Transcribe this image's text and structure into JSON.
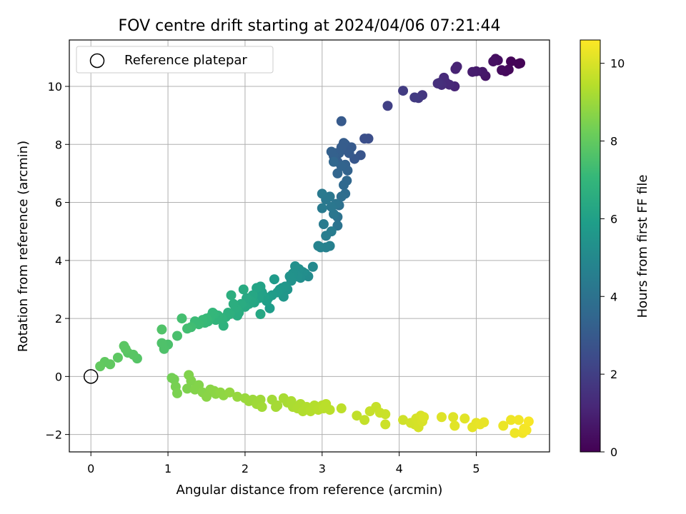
{
  "chart_data": {
    "type": "scatter",
    "title": "FOV centre drift starting at 2024/04/06 07:21:44",
    "xlabel": "Angular distance from reference (arcmin)",
    "ylabel": "Rotation from reference (arcmin)",
    "xlim": [
      -0.28,
      5.95
    ],
    "ylim": [
      -2.6,
      11.6
    ],
    "xticks": [
      0,
      1,
      2,
      3,
      4,
      5
    ],
    "yticks": [
      -2,
      0,
      2,
      4,
      6,
      8,
      10
    ],
    "xtick_labels": [
      "0",
      "1",
      "2",
      "3",
      "4",
      "5"
    ],
    "ytick_labels": [
      "−2",
      "0",
      "2",
      "4",
      "6",
      "8",
      "10"
    ],
    "grid": true,
    "legend": {
      "location": "upper-left",
      "entries": [
        "Reference platepar"
      ]
    },
    "reference_point": {
      "x": 0,
      "y": 0,
      "marker": "open-circle"
    },
    "colorbar": {
      "label": "Hours from first FF file",
      "range": [
        0,
        10.6
      ],
      "ticks": [
        0,
        2,
        4,
        6,
        8,
        10
      ],
      "tick_labels": [
        "0",
        "2",
        "4",
        "6",
        "8",
        "10"
      ],
      "colormap": "viridis",
      "stops": [
        "#440154",
        "#482878",
        "#3e4989",
        "#31688e",
        "#26828e",
        "#1f9e89",
        "#35b779",
        "#6ece58",
        "#b5de2b",
        "#fde725"
      ]
    },
    "series": [
      {
        "points": [
          [
            5.55,
            10.78
          ],
          [
            5.57,
            10.8
          ],
          [
            5.45,
            10.86
          ],
          [
            5.42,
            10.58
          ],
          [
            5.38,
            10.52
          ],
          [
            5.33,
            10.56
          ],
          [
            5.28,
            10.9
          ],
          [
            5.25,
            10.95
          ],
          [
            5.22,
            10.86
          ],
          [
            5.12,
            10.36
          ],
          [
            5.08,
            10.5
          ],
          [
            5.0,
            10.52
          ],
          [
            4.95,
            10.5
          ],
          [
            4.73,
            10.6
          ],
          [
            4.75,
            10.68
          ],
          [
            4.72,
            10.0
          ],
          [
            4.65,
            10.06
          ],
          [
            4.6,
            10.15
          ],
          [
            4.58,
            10.3
          ],
          [
            4.55,
            10.05
          ],
          [
            4.52,
            10.12
          ],
          [
            4.5,
            10.1
          ],
          [
            4.3,
            9.7
          ],
          [
            4.25,
            9.6
          ],
          [
            4.2,
            9.62
          ],
          [
            4.05,
            9.85
          ],
          [
            3.85,
            9.33
          ],
          [
            3.6,
            8.2
          ],
          [
            3.55,
            8.2
          ],
          [
            3.5,
            7.63
          ],
          [
            3.42,
            7.5
          ],
          [
            3.38,
            7.9
          ],
          [
            3.35,
            7.7
          ],
          [
            3.32,
            7.8
          ],
          [
            3.3,
            8.0
          ],
          [
            3.28,
            8.05
          ],
          [
            3.25,
            7.9
          ],
          [
            3.25,
            8.8
          ],
          [
            3.22,
            7.7
          ],
          [
            3.2,
            7.4
          ],
          [
            3.18,
            7.7
          ],
          [
            3.15,
            7.6
          ],
          [
            3.12,
            7.75
          ],
          [
            3.3,
            7.3
          ],
          [
            3.33,
            7.1
          ],
          [
            3.25,
            7.25
          ],
          [
            3.2,
            7.0
          ],
          [
            3.15,
            7.4
          ],
          [
            3.32,
            6.75
          ],
          [
            3.28,
            6.6
          ],
          [
            3.3,
            6.3
          ],
          [
            3.25,
            6.2
          ],
          [
            3.22,
            5.9
          ],
          [
            3.2,
            5.5
          ],
          [
            3.2,
            5.2
          ],
          [
            3.18,
            5.95
          ],
          [
            3.15,
            5.6
          ],
          [
            3.12,
            5.85
          ],
          [
            3.1,
            6.2
          ],
          [
            3.05,
            6.1
          ],
          [
            3.0,
            6.3
          ],
          [
            3.0,
            5.8
          ],
          [
            3.02,
            5.25
          ],
          [
            3.05,
            4.85
          ],
          [
            3.1,
            4.5
          ],
          [
            3.05,
            4.45
          ],
          [
            2.98,
            4.45
          ],
          [
            2.95,
            4.5
          ],
          [
            3.12,
            5.0
          ],
          [
            2.88,
            3.78
          ],
          [
            2.82,
            3.45
          ],
          [
            2.78,
            3.55
          ],
          [
            2.75,
            3.6
          ],
          [
            2.72,
            3.4
          ],
          [
            2.7,
            3.7
          ],
          [
            2.68,
            3.45
          ],
          [
            2.65,
            3.8
          ],
          [
            2.62,
            3.55
          ],
          [
            2.6,
            3.3
          ],
          [
            2.58,
            3.45
          ],
          [
            2.55,
            3.0
          ],
          [
            2.52,
            3.1
          ],
          [
            2.5,
            2.75
          ],
          [
            2.48,
            3.05
          ],
          [
            2.45,
            3.0
          ],
          [
            2.42,
            2.9
          ],
          [
            2.38,
            3.35
          ],
          [
            2.35,
            2.8
          ],
          [
            2.32,
            2.35
          ],
          [
            2.3,
            2.7
          ],
          [
            2.28,
            2.6
          ],
          [
            2.25,
            2.75
          ],
          [
            2.22,
            2.9
          ],
          [
            2.2,
            3.1
          ],
          [
            2.18,
            2.7
          ],
          [
            2.15,
            3.05
          ],
          [
            2.12,
            2.55
          ],
          [
            2.1,
            2.8
          ],
          [
            2.08,
            2.6
          ],
          [
            2.05,
            2.5
          ],
          [
            2.02,
            2.7
          ],
          [
            2.0,
            2.4
          ],
          [
            1.98,
            3.0
          ],
          [
            1.95,
            2.5
          ],
          [
            1.92,
            2.2
          ],
          [
            1.9,
            2.1
          ],
          [
            1.88,
            2.35
          ],
          [
            1.85,
            2.5
          ],
          [
            1.82,
            2.8
          ],
          [
            1.8,
            2.15
          ],
          [
            1.78,
            2.2
          ],
          [
            1.75,
            2.05
          ],
          [
            1.72,
            1.75
          ],
          [
            1.7,
            2.0
          ],
          [
            1.65,
            2.1
          ],
          [
            1.62,
            1.95
          ],
          [
            1.6,
            2.15
          ],
          [
            1.58,
            2.2
          ],
          [
            1.55,
            2.05
          ],
          [
            1.52,
            1.9
          ],
          [
            1.5,
            2.0
          ],
          [
            1.48,
            1.85
          ],
          [
            1.45,
            1.95
          ],
          [
            1.4,
            1.8
          ],
          [
            1.35,
            1.9
          ],
          [
            1.3,
            1.7
          ],
          [
            1.25,
            1.65
          ],
          [
            1.18,
            2.0
          ],
          [
            2.2,
            2.15
          ],
          [
            1.12,
            1.4
          ],
          [
            1.0,
            1.1
          ],
          [
            0.95,
            0.95
          ],
          [
            0.92,
            1.15
          ],
          [
            0.92,
            1.62
          ],
          [
            0.6,
            0.62
          ],
          [
            0.55,
            0.75
          ],
          [
            0.48,
            0.82
          ],
          [
            0.45,
            0.95
          ],
          [
            0.43,
            1.05
          ],
          [
            0.35,
            0.65
          ],
          [
            0.25,
            0.42
          ],
          [
            0.18,
            0.5
          ],
          [
            0.12,
            0.35
          ],
          [
            1.05,
            -0.05
          ],
          [
            1.08,
            -0.1
          ],
          [
            1.1,
            -0.35
          ],
          [
            1.12,
            -0.58
          ],
          [
            1.25,
            -0.42
          ],
          [
            1.27,
            0.05
          ],
          [
            1.3,
            -0.15
          ],
          [
            1.35,
            -0.45
          ],
          [
            1.4,
            -0.3
          ],
          [
            1.45,
            -0.55
          ],
          [
            1.5,
            -0.7
          ],
          [
            1.55,
            -0.45
          ],
          [
            1.6,
            -0.5
          ],
          [
            1.62,
            -0.6
          ],
          [
            1.68,
            -0.55
          ],
          [
            1.72,
            -0.65
          ],
          [
            1.8,
            -0.55
          ],
          [
            1.9,
            -0.7
          ],
          [
            2.0,
            -0.75
          ],
          [
            2.05,
            -0.85
          ],
          [
            2.1,
            -0.8
          ],
          [
            2.15,
            -0.95
          ],
          [
            2.2,
            -0.8
          ],
          [
            2.22,
            -1.05
          ],
          [
            2.35,
            -0.8
          ],
          [
            2.4,
            -1.05
          ],
          [
            2.42,
            -1.0
          ],
          [
            2.5,
            -0.75
          ],
          [
            2.55,
            -0.9
          ],
          [
            2.6,
            -0.85
          ],
          [
            2.62,
            -1.05
          ],
          [
            2.68,
            -1.1
          ],
          [
            2.72,
            -0.95
          ],
          [
            2.75,
            -1.2
          ],
          [
            2.8,
            -1.05
          ],
          [
            2.85,
            -1.2
          ],
          [
            2.9,
            -1.0
          ],
          [
            2.95,
            -1.15
          ],
          [
            3.0,
            -1.0
          ],
          [
            3.02,
            -1.1
          ],
          [
            3.05,
            -0.95
          ],
          [
            3.1,
            -1.15
          ],
          [
            3.25,
            -1.1
          ],
          [
            3.45,
            -1.35
          ],
          [
            3.55,
            -1.5
          ],
          [
            3.62,
            -1.2
          ],
          [
            3.7,
            -1.05
          ],
          [
            3.75,
            -1.25
          ],
          [
            3.82,
            -1.3
          ],
          [
            3.82,
            -1.65
          ],
          [
            4.05,
            -1.5
          ],
          [
            4.15,
            -1.6
          ],
          [
            4.2,
            -1.65
          ],
          [
            4.22,
            -1.45
          ],
          [
            4.25,
            -1.75
          ],
          [
            4.28,
            -1.35
          ],
          [
            4.3,
            -1.55
          ],
          [
            4.32,
            -1.4
          ],
          [
            4.55,
            -1.4
          ],
          [
            4.7,
            -1.4
          ],
          [
            4.72,
            -1.7
          ],
          [
            4.85,
            -1.45
          ],
          [
            4.95,
            -1.75
          ],
          [
            5.0,
            -1.6
          ],
          [
            5.05,
            -1.65
          ],
          [
            5.1,
            -1.58
          ],
          [
            5.35,
            -1.7
          ],
          [
            5.45,
            -1.5
          ],
          [
            5.5,
            -1.95
          ],
          [
            5.55,
            -1.5
          ],
          [
            5.6,
            -1.95
          ],
          [
            5.62,
            -1.8
          ],
          [
            5.65,
            -1.85
          ],
          [
            5.68,
            -1.55
          ]
        ],
        "color_values": [
          0.05,
          0.08,
          0.1,
          0.2,
          0.25,
          0.3,
          0.35,
          0.4,
          0.45,
          0.6,
          0.7,
          0.8,
          0.85,
          1.0,
          1.05,
          1.1,
          1.2,
          1.25,
          1.3,
          1.35,
          1.4,
          1.45,
          1.7,
          1.8,
          1.85,
          1.9,
          2.05,
          2.55,
          2.6,
          2.8,
          2.9,
          3.0,
          3.0,
          3.05,
          3.05,
          3.1,
          3.1,
          3.0,
          3.15,
          3.2,
          3.2,
          3.25,
          3.25,
          3.3,
          3.35,
          3.4,
          3.45,
          3.5,
          3.55,
          3.6,
          3.7,
          3.8,
          3.9,
          4.0,
          4.05,
          4.1,
          4.15,
          4.2,
          4.2,
          4.25,
          4.3,
          4.35,
          4.4,
          4.5,
          4.6,
          4.65,
          4.7,
          4.75,
          4.45,
          5.0,
          5.1,
          5.15,
          5.2,
          5.2,
          5.25,
          5.3,
          5.3,
          5.35,
          5.4,
          5.4,
          5.5,
          5.55,
          5.6,
          5.6,
          5.65,
          5.7,
          5.75,
          5.8,
          5.85,
          5.9,
          5.95,
          6.0,
          6.05,
          6.1,
          6.1,
          6.15,
          6.2,
          6.25,
          6.3,
          6.3,
          6.35,
          6.4,
          6.45,
          6.5,
          6.55,
          6.55,
          6.6,
          6.6,
          6.65,
          6.7,
          6.7,
          6.75,
          6.8,
          6.85,
          6.9,
          6.9,
          6.95,
          7.0,
          7.0,
          7.05,
          7.1,
          7.1,
          7.15,
          7.2,
          7.2,
          7.3,
          7.35,
          7.4,
          6.3,
          7.5,
          7.55,
          7.6,
          7.6,
          7.65,
          7.75,
          7.8,
          7.8,
          7.85,
          7.85,
          7.9,
          7.95,
          7.95,
          8.0,
          8.3,
          8.35,
          8.4,
          8.45,
          8.5,
          8.55,
          8.55,
          8.6,
          8.6,
          8.65,
          8.7,
          8.7,
          8.75,
          8.75,
          8.8,
          8.8,
          8.85,
          8.9,
          8.95,
          9.0,
          9.0,
          9.05,
          9.05,
          9.1,
          9.1,
          9.15,
          9.15,
          9.2,
          9.2,
          9.25,
          9.25,
          9.3,
          9.3,
          9.35,
          9.35,
          9.4,
          9.4,
          9.45,
          9.45,
          9.5,
          9.5,
          9.5,
          9.55,
          9.6,
          9.65,
          9.7,
          9.7,
          9.75,
          9.75,
          9.8,
          9.85,
          9.9,
          9.9,
          9.95,
          9.95,
          10.0,
          10.0,
          10.05,
          10.1,
          10.1,
          10.15,
          10.15,
          10.2,
          10.2,
          10.25,
          10.25,
          10.3,
          10.35,
          10.35,
          10.4,
          10.4,
          10.45,
          10.45,
          10.5
        ]
      }
    ]
  }
}
